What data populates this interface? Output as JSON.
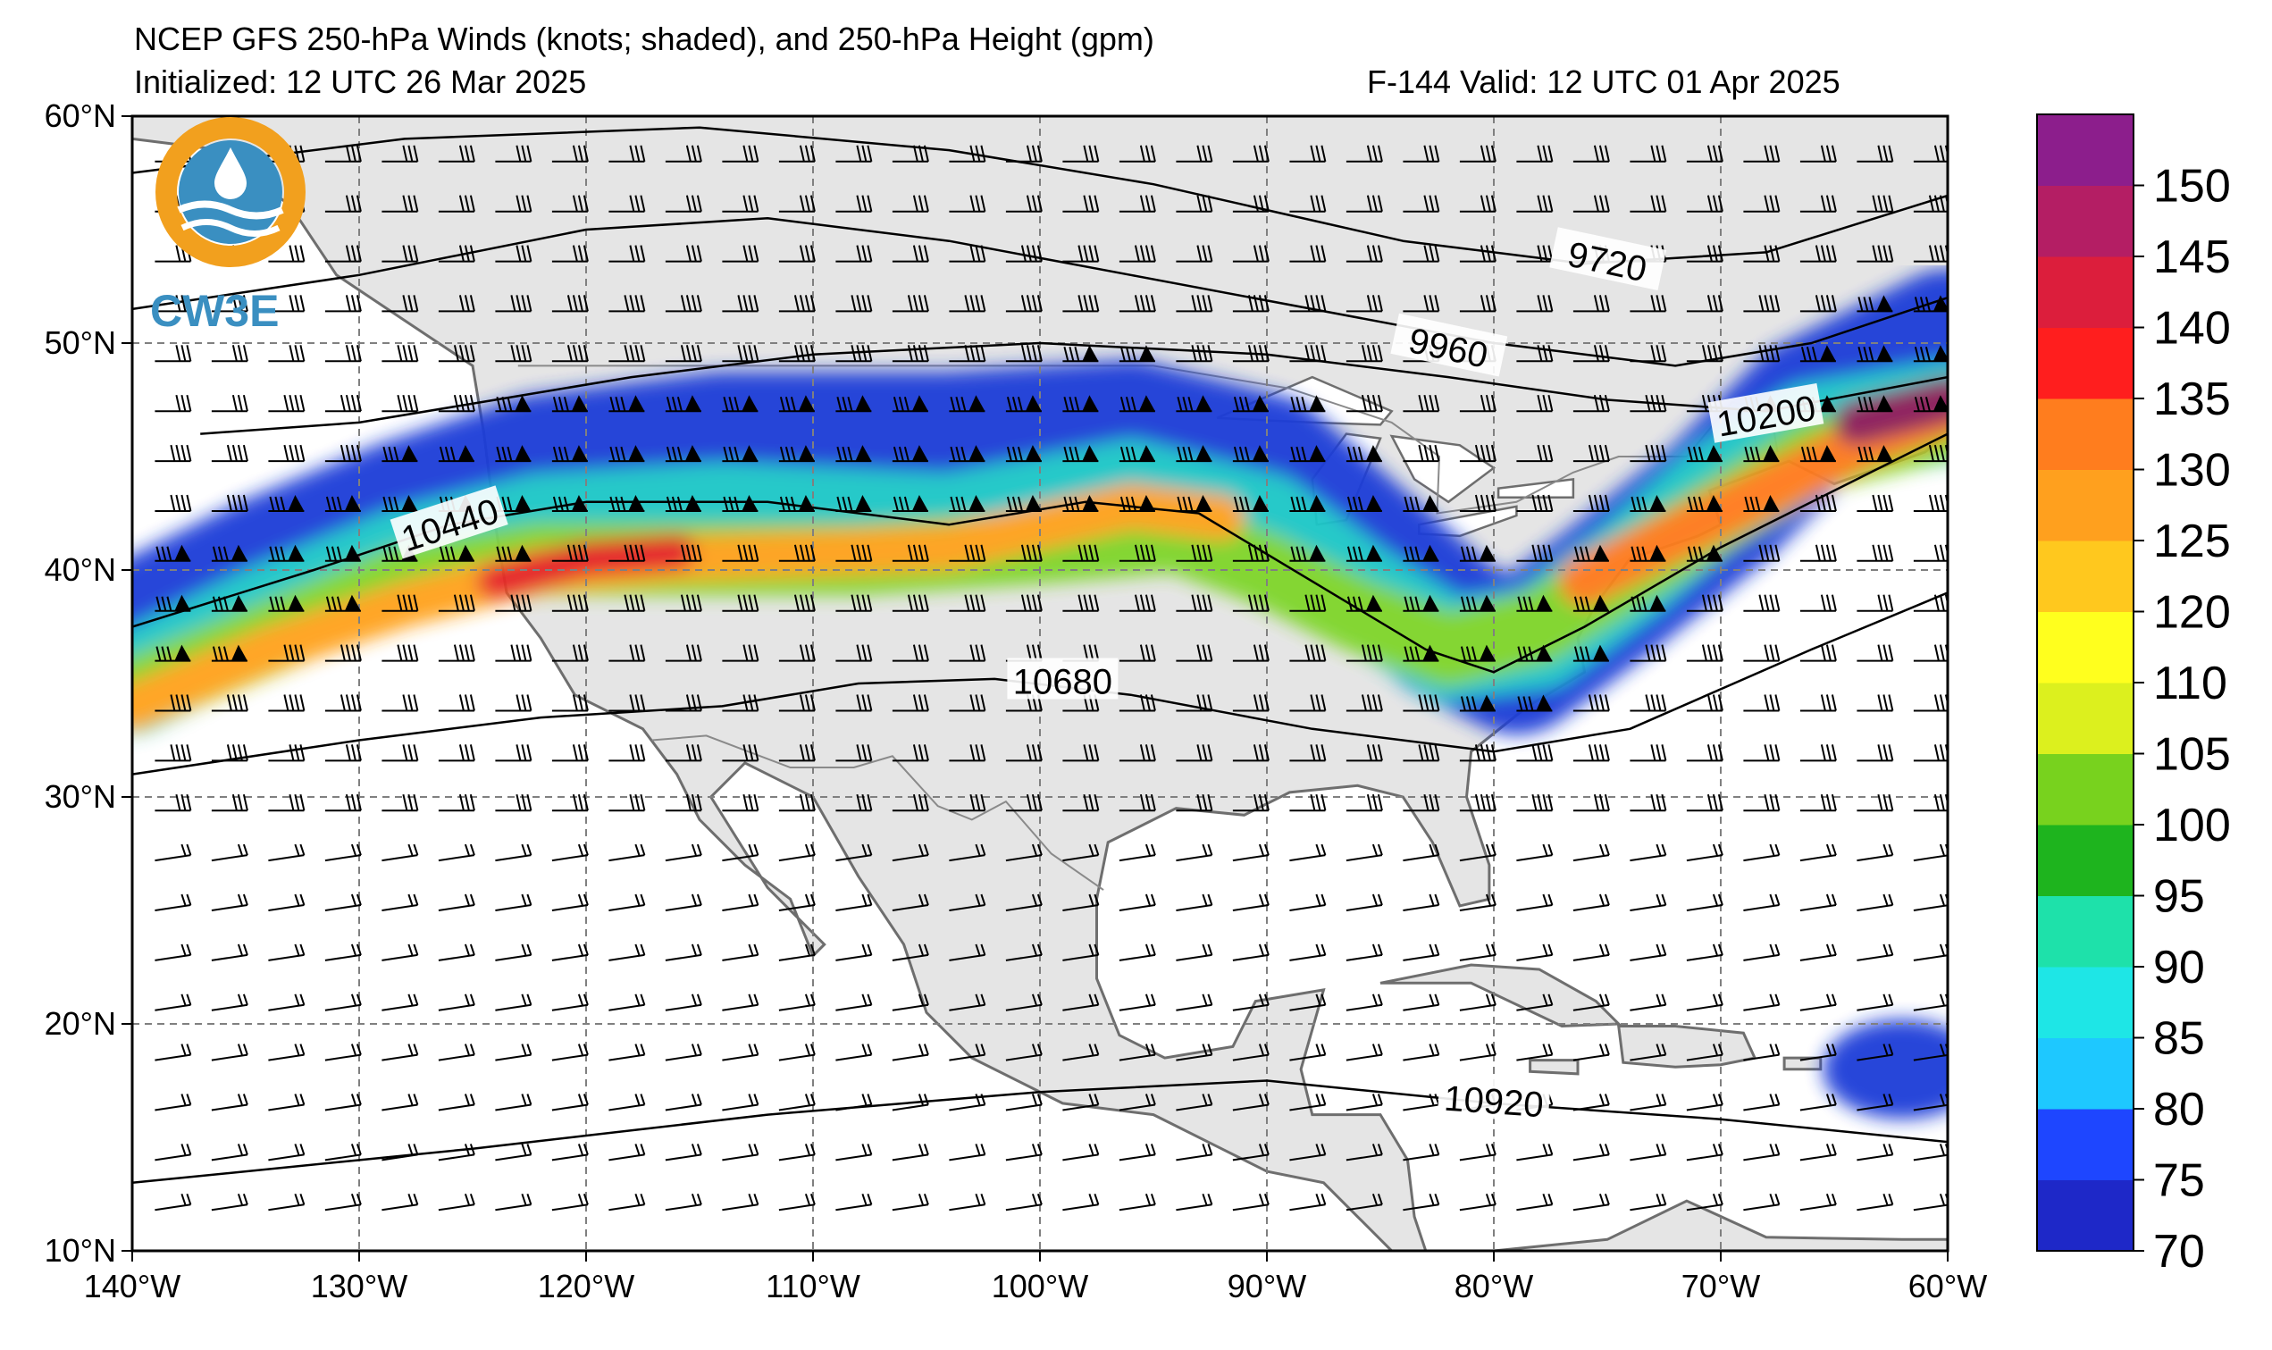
{
  "header": {
    "title": "NCEP GFS 250-hPa Winds (knots; shaded), and 250-hPa Height (gpm)",
    "initialized": "Initialized: 12 UTC 26 Mar 2025",
    "valid": "F-144  Valid: 12 UTC 01 Apr 2025"
  },
  "logo": {
    "text": "CW3E"
  },
  "map": {
    "lon_range": [
      -140,
      -60
    ],
    "lat_range": [
      10,
      60
    ],
    "lon_ticks": [
      "140°W",
      "130°W",
      "120°W",
      "110°W",
      "100°W",
      "90°W",
      "80°W",
      "70°W",
      "60°W"
    ],
    "lat_ticks": [
      "10°N",
      "20°N",
      "30°N",
      "40°N",
      "50°N",
      "60°N"
    ],
    "land_color": "#e5e5e5",
    "coast_color": "#6e6e6e"
  },
  "contours": [
    {
      "label": "9720",
      "points": [
        [
          -140,
          57.5
        ],
        [
          -128,
          59.0
        ],
        [
          -115,
          59.5
        ],
        [
          -104,
          58.5
        ],
        [
          -95,
          57
        ],
        [
          -84,
          54.5
        ],
        [
          -76,
          53.5
        ],
        [
          -68,
          54
        ],
        [
          -60,
          56.5
        ]
      ]
    },
    {
      "label": "9960",
      "points": [
        [
          -140,
          51.5
        ],
        [
          -130,
          53
        ],
        [
          -120,
          55
        ],
        [
          -112,
          55.5
        ],
        [
          -104,
          54.5
        ],
        [
          -96,
          53
        ],
        [
          -88,
          51.5
        ],
        [
          -80,
          50
        ],
        [
          -72,
          49
        ],
        [
          -66,
          50
        ],
        [
          -60,
          52
        ]
      ]
    },
    {
      "label": "10200",
      "points": [
        [
          -137,
          46
        ],
        [
          -130,
          46.5
        ],
        [
          -124,
          47.5
        ],
        [
          -118,
          48.5
        ],
        [
          -110,
          49.5
        ],
        [
          -100,
          50
        ],
        [
          -90,
          49.5
        ],
        [
          -82,
          48.5
        ],
        [
          -75,
          47.5
        ],
        [
          -68,
          47
        ],
        [
          -60,
          48.5
        ]
      ]
    },
    {
      "label": "10440",
      "points": [
        [
          -140,
          37.5
        ],
        [
          -132,
          40
        ],
        [
          -126,
          42
        ],
        [
          -120,
          43
        ],
        [
          -112,
          43
        ],
        [
          -104,
          42
        ],
        [
          -98,
          43
        ],
        [
          -93,
          42.5
        ],
        [
          -88,
          39.5
        ],
        [
          -83,
          36.5
        ],
        [
          -80,
          35.5
        ],
        [
          -76,
          37.5
        ],
        [
          -70,
          41
        ],
        [
          -64,
          44
        ],
        [
          -60,
          46
        ]
      ]
    },
    {
      "label": "10680",
      "points": [
        [
          -140,
          31
        ],
        [
          -130,
          32.5
        ],
        [
          -122,
          33.5
        ],
        [
          -114,
          34
        ],
        [
          -108,
          35
        ],
        [
          -102,
          35.2
        ],
        [
          -96,
          34.5
        ],
        [
          -88,
          33
        ],
        [
          -80,
          32
        ],
        [
          -74,
          33
        ],
        [
          -66,
          36.5
        ],
        [
          -60,
          39
        ]
      ]
    },
    {
      "label": "10920",
      "points": [
        [
          -140,
          13
        ],
        [
          -125,
          14.5
        ],
        [
          -112,
          16
        ],
        [
          -100,
          17
        ],
        [
          -90,
          17.5
        ],
        [
          -80,
          16.5
        ],
        [
          -70,
          15.8
        ],
        [
          -60,
          14.8
        ]
      ]
    }
  ],
  "jet_streams": [
    {
      "speed_kt": 75,
      "color": "#1e3cd8",
      "points": [
        [
          -140,
          37
        ],
        [
          -134,
          40
        ],
        [
          -128,
          42.5
        ],
        [
          -122,
          44.5
        ],
        [
          -114,
          45.5
        ],
        [
          -104,
          45.5
        ],
        [
          -96,
          46
        ],
        [
          -90,
          44.5
        ],
        [
          -86,
          41
        ],
        [
          -82,
          37.5
        ],
        [
          -79,
          36
        ],
        [
          -75,
          39
        ],
        [
          -70,
          43
        ],
        [
          -66,
          47
        ],
        [
          -62,
          49
        ],
        [
          -60,
          50
        ]
      ],
      "width_deg": 6.5
    },
    {
      "speed_kt": 90,
      "color": "#1ec8c8",
      "points": [
        [
          -140,
          35
        ],
        [
          -134,
          38
        ],
        [
          -128,
          40.5
        ],
        [
          -122,
          42
        ],
        [
          -114,
          42.5
        ],
        [
          -104,
          42
        ],
        [
          -96,
          43.5
        ],
        [
          -90,
          42
        ],
        [
          -86,
          39
        ],
        [
          -82,
          36.5
        ],
        [
          -78,
          37
        ],
        [
          -74,
          40
        ],
        [
          -70,
          43.5
        ],
        [
          -66,
          46
        ],
        [
          -60,
          47
        ]
      ],
      "width_deg": 4.5
    },
    {
      "speed_kt": 100,
      "color": "#7fd62a",
      "points": [
        [
          -140,
          34.5
        ],
        [
          -134,
          37
        ],
        [
          -128,
          39.5
        ],
        [
          -122,
          40.5
        ],
        [
          -116,
          40.5
        ],
        [
          -108,
          40.5
        ],
        [
          -100,
          41
        ],
        [
          -94,
          41.5
        ],
        [
          -90,
          40
        ],
        [
          -86,
          38
        ],
        [
          -82,
          36.5
        ],
        [
          -78,
          37.5
        ],
        [
          -74,
          40
        ],
        [
          -70,
          42.5
        ],
        [
          -66,
          45
        ],
        [
          -60,
          46.5
        ]
      ],
      "width_deg": 3.2
    },
    {
      "speed_kt": 120,
      "color": "#ffa21e",
      "points": [
        [
          -140,
          34
        ],
        [
          -134,
          36.5
        ],
        [
          -128,
          38.5
        ],
        [
          -122,
          40
        ],
        [
          -116,
          40.5
        ],
        [
          -108,
          40.8
        ],
        [
          -104,
          41
        ],
        [
          -96,
          42.8
        ],
        [
          -92,
          42.3
        ]
      ],
      "width_deg": 2.0
    },
    {
      "speed_kt": 125,
      "color": "#ff7a1a",
      "points": [
        [
          -76,
          39.5
        ],
        [
          -72,
          41.5
        ],
        [
          -68,
          43.5
        ],
        [
          -64,
          45.5
        ],
        [
          -60,
          47
        ]
      ],
      "width_deg": 2.2
    },
    {
      "speed_kt": 135,
      "color": "#e61e28",
      "points": [
        [
          -124,
          39.5
        ],
        [
          -120,
          40.5
        ],
        [
          -116,
          40.8
        ]
      ],
      "width_deg": 1.6
    },
    {
      "speed_kt": 150,
      "color": "#8c1e5a",
      "points": [
        [
          -64,
          46.5
        ],
        [
          -60,
          47.5
        ]
      ],
      "width_deg": 2.0
    }
  ],
  "tropical_patch": {
    "color": "#1e3cd8",
    "center": [
      -62,
      18
    ],
    "rx_deg": 3.5,
    "ry_deg": 2.2
  },
  "colorbar": {
    "levels": [
      "70",
      "75",
      "80",
      "85",
      "90",
      "95",
      "100",
      "105",
      "110",
      "120",
      "125",
      "130",
      "135",
      "140",
      "145",
      "150"
    ],
    "colors": [
      "#1e28c8",
      "#1e46ff",
      "#1ec8ff",
      "#1ee6e6",
      "#1ee1aa",
      "#1eb41e",
      "#78d21e",
      "#dcf01e",
      "#ffff1e",
      "#ffc81e",
      "#ffa01e",
      "#ff7d1e",
      "#ff1e1e",
      "#dc1e3c",
      "#b41e64",
      "#8c1e8c"
    ]
  }
}
